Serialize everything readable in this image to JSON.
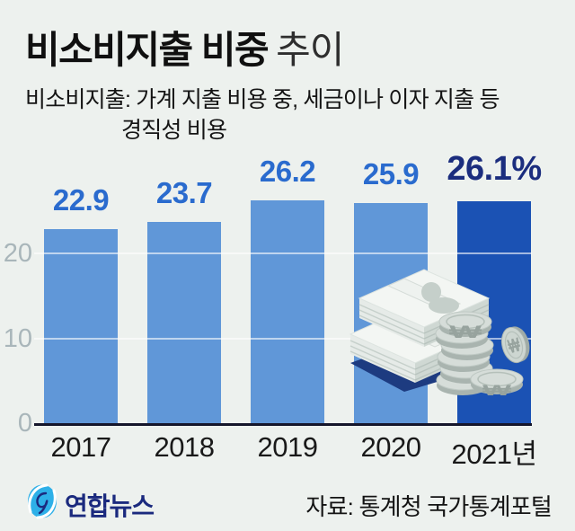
{
  "page": {
    "background": "#edf1ee"
  },
  "header": {
    "title_main": "비소비지출 비중",
    "title_suffix": "추이",
    "subtitle_line1": "비소비지출: 가계 지출 비용 중, 세금이나 이자 지출 등",
    "subtitle_line2": "경직성 비용"
  },
  "chart_data": {
    "type": "bar",
    "title": "비소비지출 비중 추이",
    "categories": [
      "2017",
      "2018",
      "2019",
      "2020",
      "2021년"
    ],
    "values": [
      22.9,
      23.7,
      26.2,
      25.9,
      26.1
    ],
    "value_labels": [
      "22.9",
      "23.7",
      "26.2",
      "25.9",
      "26.1%"
    ],
    "unit": "%",
    "xlabel": "",
    "ylabel": "",
    "ylim": [
      0,
      28
    ],
    "yticks": [
      0,
      10,
      20
    ],
    "gridlines": [
      10,
      20
    ],
    "grid": "on",
    "legend": "none",
    "highlight_index": 4,
    "colors": {
      "bar": "#6097d8",
      "bar_highlight": "#1b52b4",
      "value_label": "#2a6bce",
      "value_label_highlight": "#1b2d7e",
      "tick": "#a9b6ba",
      "axis": "#15162b"
    }
  },
  "illustration": {
    "name": "money-stack-and-won-coins",
    "coin_symbol": "₩"
  },
  "footer": {
    "logo_text": "연합뉴스",
    "source": "자료: 통계청 국가통계포털"
  }
}
